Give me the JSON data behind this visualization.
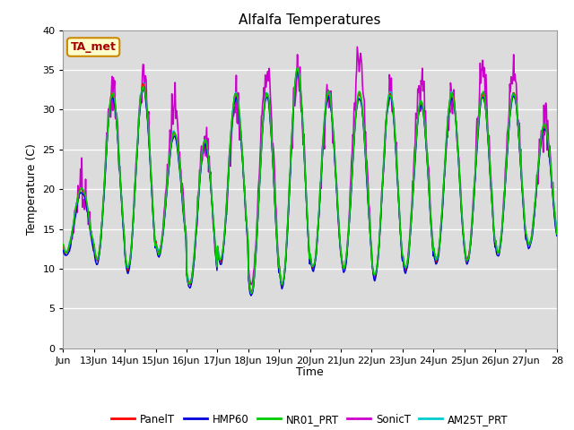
{
  "title": "Alfalfa Temperatures",
  "ylabel": "Temperature (C)",
  "xlabel": "Time",
  "annotation": "TA_met",
  "plot_bg_color": "#dcdcdc",
  "fig_bg": "#ffffff",
  "ylim": [
    0,
    40
  ],
  "yticks": [
    0,
    5,
    10,
    15,
    20,
    25,
    30,
    35,
    40
  ],
  "xtick_labels": [
    "Jun",
    "13Jun",
    "14Jun",
    "15Jun",
    "16Jun",
    "17Jun",
    "18Jun",
    "19Jun",
    "20Jun",
    "21Jun",
    "22Jun",
    "23Jun",
    "24Jun",
    "25Jun",
    "26Jun",
    "27Jun",
    "28"
  ],
  "series_order": [
    "SonicT",
    "PanelT",
    "HMP60",
    "NR01_PRT",
    "AM25T_PRT"
  ],
  "series": {
    "PanelT": {
      "color": "#ff0000",
      "lw": 1.0,
      "zorder": 4
    },
    "HMP60": {
      "color": "#0000dd",
      "lw": 1.0,
      "zorder": 5
    },
    "NR01_PRT": {
      "color": "#00cc00",
      "lw": 1.2,
      "zorder": 6
    },
    "SonicT": {
      "color": "#cc00cc",
      "lw": 1.2,
      "zorder": 2
    },
    "AM25T_PRT": {
      "color": "#00cccc",
      "lw": 1.2,
      "zorder": 3
    }
  },
  "day_peaks": [
    20,
    32,
    33,
    27,
    26,
    32,
    32,
    35,
    32,
    32,
    32,
    31,
    32,
    32,
    32,
    28
  ],
  "day_mins": [
    12,
    11,
    10,
    12,
    8,
    11,
    7,
    8,
    10,
    10,
    9,
    10,
    11,
    11,
    12,
    13
  ],
  "sonic_peaks": [
    20,
    32,
    34,
    30,
    26,
    31,
    35,
    35,
    32,
    36,
    32,
    34,
    32,
    35,
    34,
    29
  ],
  "sonic_mins": [
    12,
    11,
    10,
    12,
    8,
    11,
    8,
    8,
    10,
    10,
    9,
    10,
    11,
    11,
    12,
    13
  ],
  "pts_per_day": 48,
  "days": 16,
  "seed": 10
}
